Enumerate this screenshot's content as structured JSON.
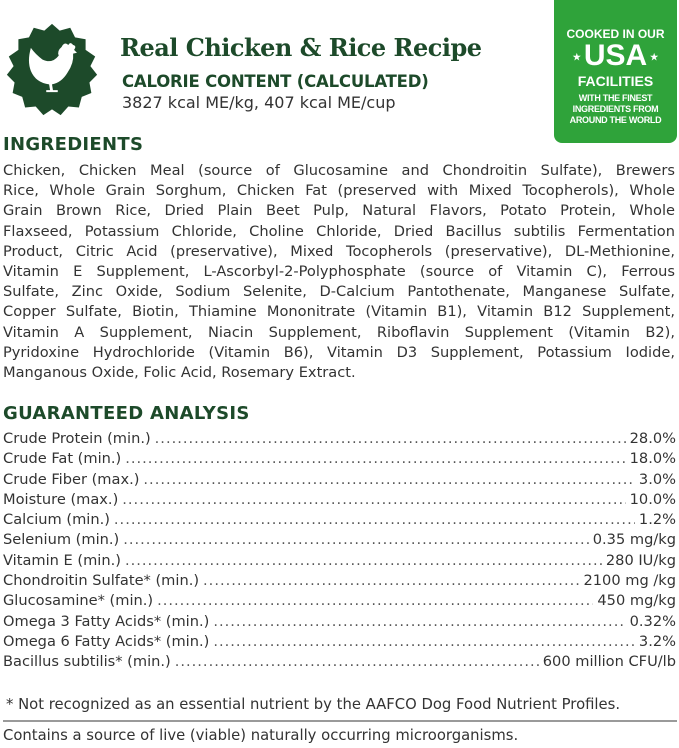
{
  "header": {
    "title": "Real Chicken & Rice Recipe",
    "calorie_heading": "CALORIE CONTENT (CALCULATED)",
    "calorie_value": "3827 kcal ME/kg, 407 kcal ME/cup",
    "seal_icon": "chicken-icon"
  },
  "badge": {
    "line1": "COOKED IN OUR",
    "line2": "USA",
    "line3": "FACILITIES",
    "line4": "WITH THE FINEST",
    "line5": "INGREDIENTS FROM",
    "line6": "AROUND THE WORLD",
    "color": "#2fa33a"
  },
  "ingredients": {
    "heading": "INGREDIENTS",
    "lines": [
      "Chicken, Chicken Meal (source of Glucosamine and Chondroitin Sulfate), Brewers",
      "Rice, Whole Grain Sorghum, Chicken Fat (preserved with Mixed Tocopherols), Whole",
      "Grain Brown Rice, Dried Plain Beet Pulp, Natural Flavors, Potato Protein, Whole",
      "Flaxseed, Potassium Chloride, Choline Chloride, Dried Bacillus subtilis Fermentation",
      "Product, Citric Acid (preservative), Mixed Tocopherols (preservative), DL-Methionine,",
      "Vitamin E Supplement, L-Ascorbyl-2-Polyphosphate (source of Vitamin C), Ferrous",
      "Sulfate, Zinc Oxide, Sodium Selenite, D-Calcium Pantothenate, Manganese Sulfate,",
      "Copper Sulfate, Biotin, Thiamine Mononitrate (Vitamin B1), Vitamin B12 Supplement,",
      "Vitamin A Supplement, Niacin Supplement, Riboflavin Supplement (Vitamin B2),",
      "Pyridoxine Hydrochloride (Vitamin B6), Vitamin D3 Supplement, Potassium Iodide,",
      "Manganous Oxide, Folic Acid, Rosemary Extract."
    ]
  },
  "analysis": {
    "heading": "GUARANTEED ANALYSIS",
    "rows": [
      {
        "label": "Crude Protein (min.)",
        "value": "28.0%"
      },
      {
        "label": "Crude Fat (min.)",
        "value": "18.0%"
      },
      {
        "label": "Crude Fiber (max.)",
        "value": "3.0%"
      },
      {
        "label": "Moisture (max.)",
        "value": "10.0%"
      },
      {
        "label": "Calcium (min.)",
        "value": "1.2%"
      },
      {
        "label": "Selenium (min.)",
        "value": "0.35 mg/kg"
      },
      {
        "label": "Vitamin E (min.)",
        "value": "280 IU/kg"
      },
      {
        "label": "Chondroitin Sulfate* (min.)",
        "value": "2100 mg /kg"
      },
      {
        "label": "Glucosamine* (min.)",
        "value": "450 mg/kg"
      },
      {
        "label": "Omega 3 Fatty Acids* (min.)",
        "value": "0.32%"
      },
      {
        "label": "Omega 6 Fatty Acids* (min.)",
        "value": "3.2%"
      },
      {
        "label": "Bacillus subtilis* (min.)",
        "value": "600 million CFU/lb"
      }
    ]
  },
  "footnote": "* Not recognized as an essential nutrient by the AAFCO Dog Food Nutrient Profiles.",
  "live_note": "Contains a source of live (viable) naturally occurring microorganisms."
}
